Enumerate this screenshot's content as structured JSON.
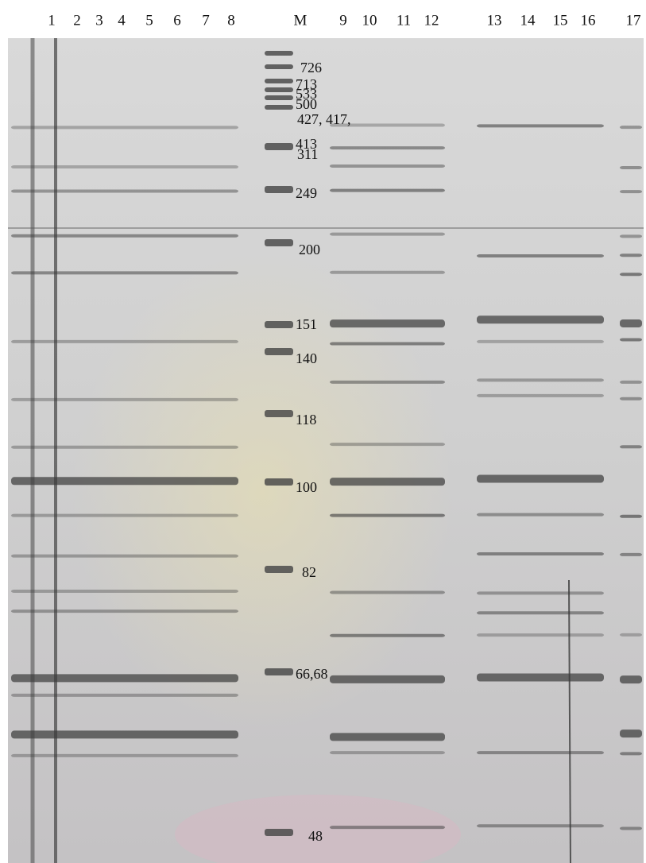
{
  "lanes": [
    "1",
    "2",
    "3",
    "4",
    "5",
    "6",
    "7",
    "8",
    "M",
    "9",
    "10",
    "11",
    "12",
    "13",
    "14",
    "15",
    "16",
    "17"
  ],
  "marker_labels": [
    "726",
    "713",
    "533",
    "500",
    "427, 417,",
    "413",
    "311",
    "249",
    "200",
    "151",
    "140",
    "118",
    "100",
    "82",
    "66,68",
    "48"
  ]
}
